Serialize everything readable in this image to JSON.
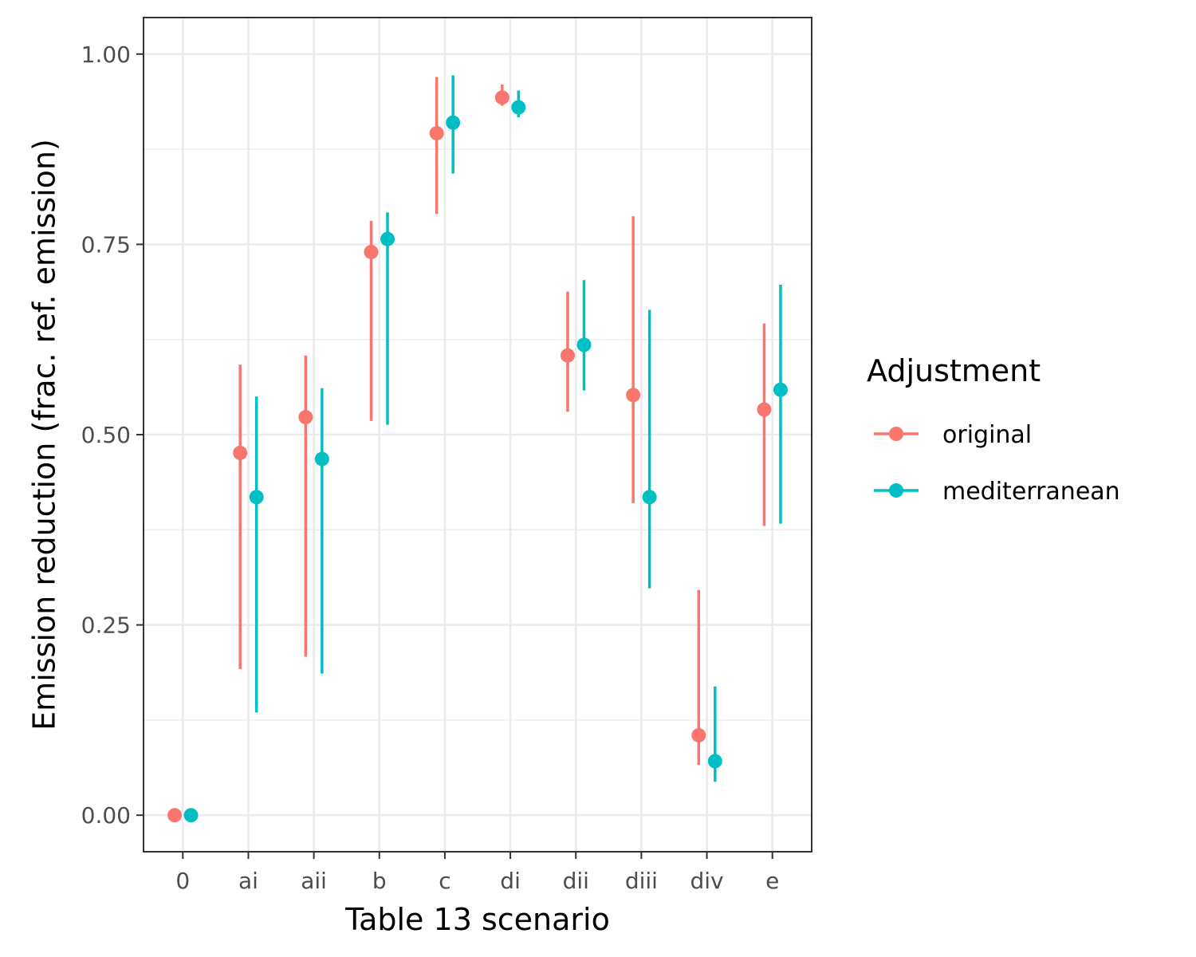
{
  "chart_data": {
    "type": "scatter",
    "xlabel": "Table 13 scenario",
    "ylabel": "Emission reduction (frac. ref. emission)",
    "categories": [
      "0",
      "ai",
      "aii",
      "b",
      "c",
      "di",
      "dii",
      "diii",
      "div",
      "e"
    ],
    "ylim": [
      -0.048,
      1.048
    ],
    "yticks": [
      "0.00",
      "0.25",
      "0.50",
      "0.75",
      "1.00"
    ],
    "grid": true,
    "legend": {
      "title": "Adjustment",
      "placement": "right"
    },
    "series": [
      {
        "name": "original",
        "color": "#F8766D",
        "values": [
          0.0,
          0.476,
          0.523,
          0.74,
          0.896,
          0.943,
          0.604,
          0.552,
          0.105,
          0.533
        ],
        "lower": [
          null,
          0.192,
          0.208,
          0.518,
          0.79,
          0.932,
          0.53,
          0.41,
          0.066,
          0.38
        ],
        "upper": [
          null,
          0.592,
          0.604,
          0.781,
          0.97,
          0.96,
          0.688,
          0.787,
          0.296,
          0.646
        ]
      },
      {
        "name": "mediterranean",
        "color": "#00BFC4",
        "values": [
          0.0,
          0.418,
          0.468,
          0.757,
          0.91,
          0.93,
          0.618,
          0.418,
          0.071,
          0.559
        ],
        "lower": [
          null,
          0.135,
          0.186,
          0.513,
          0.843,
          0.917,
          0.558,
          0.298,
          0.044,
          0.383
        ],
        "upper": [
          null,
          0.55,
          0.561,
          0.792,
          0.972,
          0.952,
          0.703,
          0.664,
          0.169,
          0.697
        ]
      }
    ]
  }
}
